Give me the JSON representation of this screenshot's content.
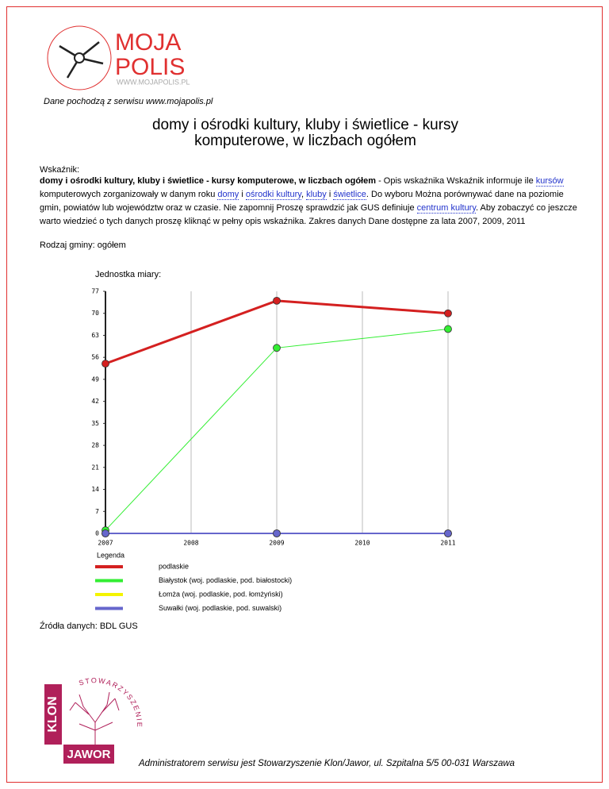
{
  "header": {
    "logo": {
      "line1": "MOJA",
      "line2": "POLIS",
      "url": "WWW.MOJAPOLIS.PL"
    },
    "source": "Dane pochodzą z serwisu www.mojapolis.pl",
    "title": "domy i ośrodki kultury, kluby i świetlice - kursy komputerowe, w liczbach ogółem"
  },
  "indicator": {
    "label": "Wskaźnik:",
    "segments": [
      {
        "text": "domy i ośrodki kultury, kluby i świetlice - kursy komputerowe, w liczbach ogółem",
        "style": "bold"
      },
      {
        "text": " - Opis wskaźnika Wskaźnik informuje ile ",
        "style": "plain"
      },
      {
        "text": "kursów",
        "style": "link"
      },
      {
        "text": " komputerowych zorganizowały w danym roku ",
        "style": "plain"
      },
      {
        "text": "domy",
        "style": "link"
      },
      {
        "text": " i ",
        "style": "plain"
      },
      {
        "text": "ośrodki kultury",
        "style": "link"
      },
      {
        "text": ", ",
        "style": "plain"
      },
      {
        "text": "kluby",
        "style": "link"
      },
      {
        "text": " i ",
        "style": "plain"
      },
      {
        "text": "świetlice",
        "style": "link"
      },
      {
        "text": ". Do wyboru Można porównywać dane na poziomie gmin, powiatów lub województw oraz w czasie. Nie zapomnij Proszę sprawdzić jak GUS definiuje ",
        "style": "plain"
      },
      {
        "text": "centrum kultury",
        "style": "link"
      },
      {
        "text": ". Aby zobaczyć co jeszcze warto wiedzieć o tych danych proszę kliknąć w pełny opis wskaźnika. Zakres danych Dane dostępne za lata 2007, 2009, 2011",
        "style": "plain"
      }
    ]
  },
  "municipality": "Rodzaj gminy: ogółem",
  "chart_data": {
    "type": "line",
    "title": "Jednostka miary:",
    "legend_title": "Legenda",
    "x": [
      2007,
      2009,
      2011
    ],
    "xlim": [
      2007,
      2011
    ],
    "xticks": [
      2007,
      2008,
      2009,
      2010,
      2011
    ],
    "ylim": [
      0,
      77
    ],
    "yticks": [
      0,
      7,
      14,
      21,
      28,
      35,
      42,
      49,
      56,
      63,
      70,
      77
    ],
    "grid_x": true,
    "series": [
      {
        "name": "podlaskie",
        "color": "#d42020",
        "line_width": 3,
        "values": [
          54,
          74,
          70
        ]
      },
      {
        "name": "Białystok (woj. podlaskie, pod. białostocki)",
        "color": "#33ee33",
        "line_width": 1,
        "values": [
          1,
          59,
          65
        ]
      },
      {
        "name": "Łomża (woj. podlaskie, pod. łomżyński)",
        "color": "#f4f400",
        "line_width": 2,
        "values": [
          0,
          0,
          0
        ]
      },
      {
        "name": "Suwałki (woj. podlaskie, pod. suwalski)",
        "color": "#6666cc",
        "line_width": 2,
        "values": [
          0,
          0,
          0
        ]
      }
    ]
  },
  "sources": "Źródła danych: BDL GUS",
  "footer": {
    "logo": {
      "arc": "STOWARZYSZENIE",
      "vertical": "KLON",
      "bottom": "JAWOR"
    },
    "admin": "Administratorem serwisu jest Stowarzyszenie Klon/Jawor, ul. Szpitalna 5/5 00-031 Warszawa"
  }
}
